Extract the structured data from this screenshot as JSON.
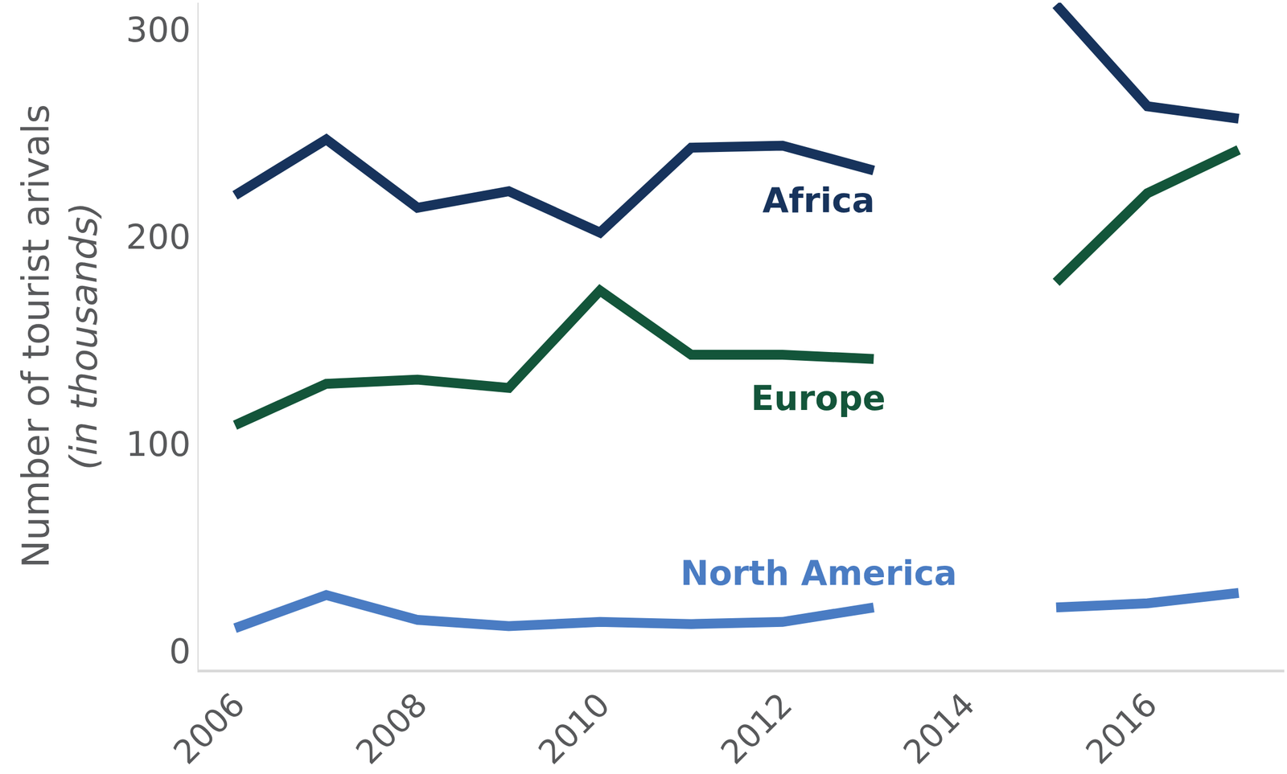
{
  "chart_data": {
    "type": "line",
    "y_label": "Number of tourist arivals",
    "y_label_note": "(in thousands)",
    "x": [
      2006,
      2007,
      2008,
      2009,
      2010,
      2011,
      2012,
      2013,
      2014,
      2015,
      2016,
      2017
    ],
    "series": [
      {
        "name": "Africa",
        "color": "#17335c",
        "values": [
          220,
          247,
          214,
          222,
          202,
          243,
          244,
          232,
          null,
          312,
          263,
          257
        ]
      },
      {
        "name": "Europe",
        "color": "#13553a",
        "values": [
          109,
          129,
          131,
          127,
          174,
          143,
          143,
          141,
          null,
          178,
          221,
          242
        ]
      },
      {
        "name": "North America",
        "color": "#4a7cc3",
        "values": [
          11,
          27,
          15,
          12,
          14,
          13,
          14,
          21,
          null,
          21,
          23,
          28
        ]
      }
    ],
    "xlim": [
      2005.6,
      2017.5
    ],
    "xticks": [
      2006,
      2008,
      2010,
      2012,
      2014,
      2016
    ],
    "ylim": [
      -9,
      313
    ],
    "yticks": [
      0,
      100,
      200,
      300
    ],
    "grid": false
  }
}
